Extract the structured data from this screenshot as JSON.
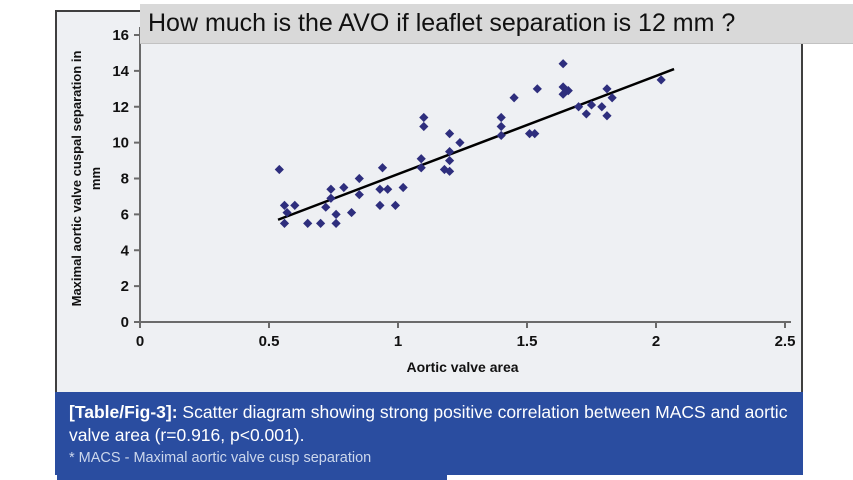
{
  "question_banner": {
    "text": "How much is the AVO if leaflet separation is 12 mm ?"
  },
  "caption": {
    "label": "[Table/Fig-3]:",
    "text": " Scatter diagram showing strong positive correlation between MACS and aortic valve area (r=0.916, p<0.001).",
    "footnote": "* MACS - Maximal aortic valve cusp separation"
  },
  "colors": {
    "banner_bg": "#d9d9d9",
    "caption_bg": "#2a4da0",
    "figure_bg": "#eef0f3",
    "point": "#2e2e7d",
    "trend_line": "#000000",
    "axis": "#6a6a6a",
    "tick": "#6a6a6a"
  },
  "chart_data": {
    "type": "scatter",
    "title": "",
    "xlabel": "Aortic valve area",
    "ylabel_line1": "Maximal aortic valve cuspal separation in",
    "ylabel_line2": "mm",
    "xlim": [
      0,
      2.5
    ],
    "ylim": [
      0,
      16
    ],
    "x_ticks": [
      "0",
      "0.5",
      "1",
      "1.5",
      "2",
      "2.5"
    ],
    "x_tick_values": [
      0,
      0.5,
      1,
      1.5,
      2,
      2.5
    ],
    "y_ticks": [
      "0",
      "2",
      "4",
      "6",
      "8",
      "10",
      "12",
      "14",
      "16"
    ],
    "y_tick_values": [
      0,
      2,
      4,
      6,
      8,
      10,
      12,
      14,
      16
    ],
    "grid": false,
    "legend": "none",
    "correlation_r": 0.916,
    "p_value": "<0.001",
    "trend_line": {
      "x1": 0.535,
      "y1": 5.7,
      "x2": 2.07,
      "y2": 14.1
    },
    "points": [
      [
        0.54,
        8.5
      ],
      [
        0.56,
        6.5
      ],
      [
        0.57,
        6.1
      ],
      [
        0.56,
        5.5
      ],
      [
        0.6,
        6.5
      ],
      [
        0.65,
        5.5
      ],
      [
        0.7,
        5.5
      ],
      [
        0.72,
        6.4
      ],
      [
        0.74,
        6.9
      ],
      [
        0.74,
        7.4
      ],
      [
        0.76,
        6.0
      ],
      [
        0.76,
        5.5
      ],
      [
        0.79,
        7.5
      ],
      [
        0.82,
        6.1
      ],
      [
        0.85,
        8.0
      ],
      [
        0.85,
        7.1
      ],
      [
        0.93,
        7.4
      ],
      [
        0.93,
        6.5
      ],
      [
        0.94,
        8.6
      ],
      [
        0.96,
        7.4
      ],
      [
        0.99,
        6.5
      ],
      [
        1.02,
        7.5
      ],
      [
        1.09,
        9.1
      ],
      [
        1.09,
        8.6
      ],
      [
        1.1,
        11.4
      ],
      [
        1.1,
        10.9
      ],
      [
        1.18,
        8.5
      ],
      [
        1.2,
        10.5
      ],
      [
        1.24,
        10.0
      ],
      [
        1.2,
        9.5
      ],
      [
        1.2,
        9.0
      ],
      [
        1.2,
        8.4
      ],
      [
        1.4,
        11.4
      ],
      [
        1.4,
        10.9
      ],
      [
        1.4,
        10.4
      ],
      [
        1.45,
        12.5
      ],
      [
        1.51,
        10.5
      ],
      [
        1.53,
        10.5
      ],
      [
        1.54,
        13.0
      ],
      [
        1.64,
        14.4
      ],
      [
        1.64,
        13.1
      ],
      [
        1.66,
        12.9
      ],
      [
        1.64,
        12.7
      ],
      [
        1.7,
        12.0
      ],
      [
        1.73,
        11.6
      ],
      [
        1.75,
        12.1
      ],
      [
        1.79,
        12.0
      ],
      [
        1.81,
        13.0
      ],
      [
        1.81,
        11.5
      ],
      [
        1.83,
        12.5
      ],
      [
        2.02,
        13.5
      ]
    ]
  }
}
